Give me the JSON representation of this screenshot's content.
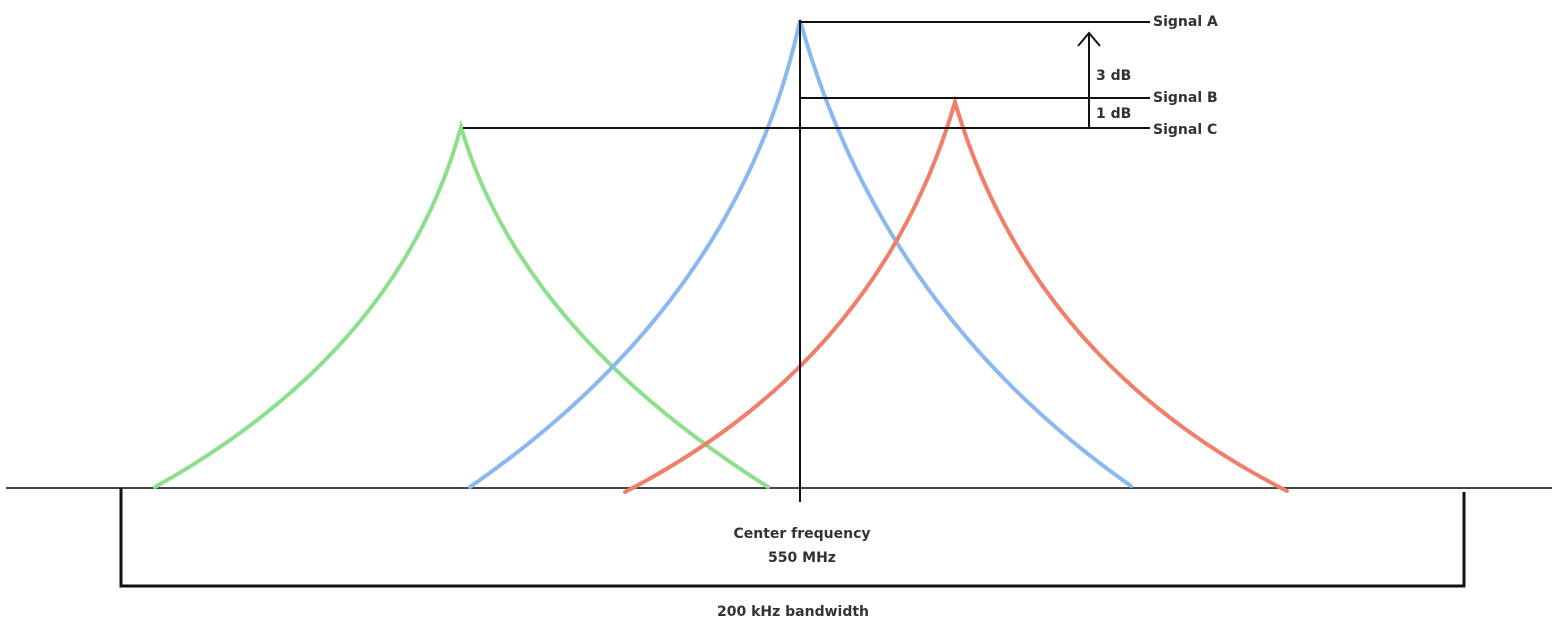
{
  "signals": [
    {
      "name": "Signal A",
      "color": "#8ab8f0"
    },
    {
      "name": "Signal B",
      "color": "#f07e68"
    },
    {
      "name": "Signal C",
      "color": "#8ce08c"
    }
  ],
  "deltas": {
    "upper": "3 dB",
    "lower": "1 dB"
  },
  "center": {
    "line1": "Center frequency",
    "line2": "550 MHz"
  },
  "bandwidth": "200 kHz bandwidth",
  "colors": {
    "axis": "#444444",
    "lines": "#111111",
    "text": "#333333"
  }
}
